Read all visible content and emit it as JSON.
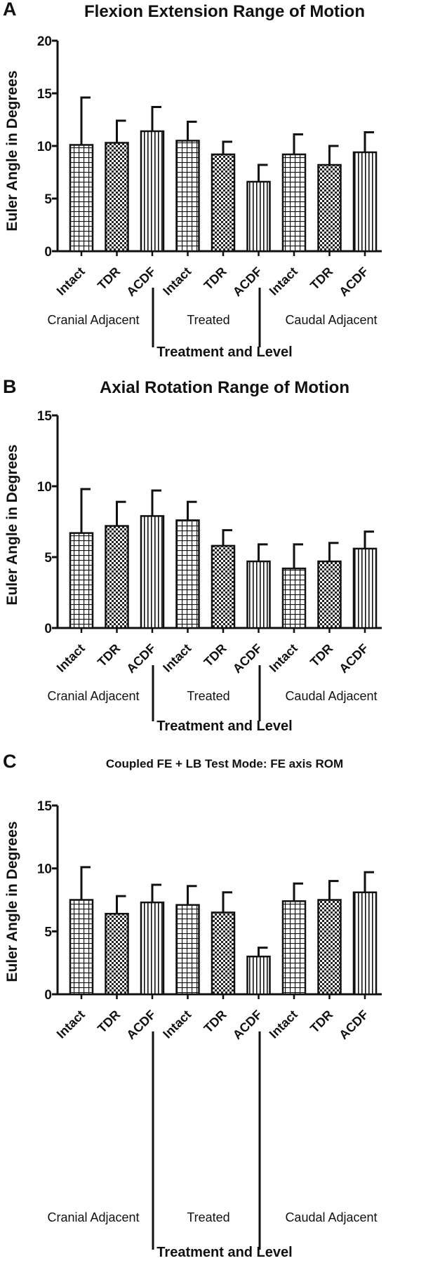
{
  "chart_data": [
    {
      "panel": "A",
      "type": "bar",
      "title": "Flexion Extension Range of Motion",
      "ylabel": "Euler Angle in Degrees",
      "xlabel": "Treatment and Level",
      "ylim": [
        0,
        20
      ],
      "yticks": [
        "0",
        "5",
        "10",
        "15",
        "20"
      ],
      "categories": [
        "Intact",
        "TDR",
        "ACDF",
        "Intact",
        "TDR",
        "ACDF",
        "Intact",
        "TDR",
        "ACDF"
      ],
      "groups": [
        "Cranial Adjacent",
        "Treated",
        "Caudal Adjacent"
      ],
      "patterns": [
        "grid",
        "check",
        "vstripe",
        "grid",
        "check",
        "vstripe",
        "grid",
        "check",
        "vstripe"
      ],
      "values": [
        10.1,
        10.3,
        11.4,
        10.5,
        9.2,
        6.6,
        9.2,
        8.2,
        9.4
      ],
      "error": [
        4.5,
        2.1,
        2.3,
        1.8,
        1.2,
        1.6,
        1.9,
        1.8,
        1.9
      ]
    },
    {
      "panel": "B",
      "type": "bar",
      "title": "Axial  Rotation Range of Motion",
      "ylabel": "Euler Angle in Degrees",
      "xlabel": "Treatment and Level",
      "ylim": [
        0,
        15
      ],
      "yticks": [
        "0",
        "5",
        "10",
        "15"
      ],
      "categories": [
        "Intact",
        "TDR",
        "ACDF",
        "Intact",
        "TDR",
        "ACDF",
        "Intact",
        "TDR",
        "ACDF"
      ],
      "groups": [
        "Cranial Adjacent",
        "Treated",
        "Caudal Adjacent"
      ],
      "patterns": [
        "grid",
        "check",
        "vstripe",
        "grid",
        "check",
        "vstripe",
        "grid",
        "check",
        "vstripe"
      ],
      "values": [
        6.7,
        7.2,
        7.9,
        7.6,
        5.8,
        4.7,
        4.2,
        4.7,
        5.6
      ],
      "error": [
        3.1,
        1.7,
        1.8,
        1.3,
        1.1,
        1.2,
        1.7,
        1.3,
        1.2
      ]
    },
    {
      "panel": "C",
      "type": "bar",
      "title": "Coupled FE + LB Test Mode: FE axis ROM",
      "ylabel": "Euler Angle in Degrees",
      "xlabel": "Treatment and Level",
      "ylim": [
        0,
        15
      ],
      "yticks": [
        "0",
        "5",
        "10",
        "15"
      ],
      "categories": [
        "Intact",
        "TDR",
        "ACDF",
        "Intact",
        "TDR",
        "ACDF",
        "Intact",
        "TDR",
        "ACDF"
      ],
      "groups": [
        "Cranial Adjacent",
        "Treated",
        "Caudal Adjacent"
      ],
      "patterns": [
        "grid",
        "check",
        "vstripe",
        "grid",
        "check",
        "vstripe",
        "grid",
        "check",
        "vstripe"
      ],
      "values": [
        7.5,
        6.4,
        7.3,
        7.1,
        6.5,
        3.0,
        7.4,
        7.5,
        8.1
      ],
      "error": [
        2.6,
        1.4,
        1.4,
        1.5,
        1.6,
        0.7,
        1.4,
        1.5,
        1.6
      ]
    }
  ],
  "colors": {
    "ink": "#111111",
    "background": "#ffffff"
  }
}
